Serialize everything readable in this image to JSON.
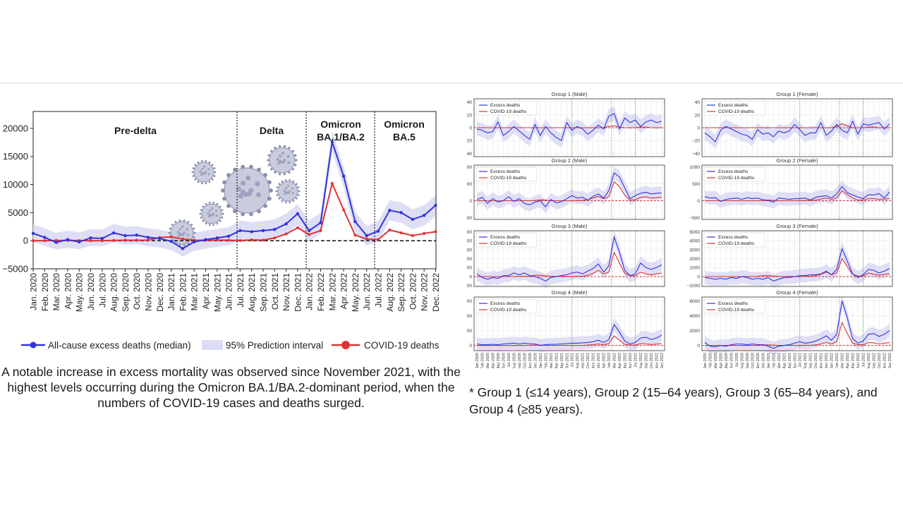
{
  "main_caption": "A notable increase in excess mortality was observed since November 2021, with the highest levels occurring during the Omicron BA.1/BA.2-dominant period, when the numbers of COVID-19 cases and deaths surged.",
  "footnote": "* Group 1 (≤14 years), Group 2 (15–64 years), Group 3 (65–84 years), and Group 4 (≥85 years).",
  "colors": {
    "excess": "#3333dd",
    "covid": "#dd3333",
    "band": "#dcdcf5",
    "virus": "#8a8fae"
  },
  "chart_data": [
    {
      "type": "line",
      "x": [
        "Jan. 2020",
        "Feb. 2020",
        "Mar. 2020",
        "Apr. 2020",
        "May. 2020",
        "Jun. 2020",
        "Jul. 2020",
        "Aug. 2020",
        "Sep. 2020",
        "Oct. 2020",
        "Nov. 2020",
        "Dec. 2020",
        "Jan. 2021",
        "Feb. 2021",
        "Mar. 2021",
        "Apr. 2021",
        "May. 2021",
        "Jun. 2021",
        "Jul. 2021",
        "Aug. 2021",
        "Sep. 2021",
        "Oct. 2021",
        "Nov. 2021",
        "Dec. 2021",
        "Jan. 2022",
        "Feb. 2022",
        "Mar. 2022",
        "Apr. 2022",
        "May. 2022",
        "Jun. 2022",
        "Jul. 2022",
        "Aug. 2022",
        "Sep. 2022",
        "Oct. 2022",
        "Nov. 2022",
        "Dec. 2022"
      ],
      "ylim": [
        -5000,
        23000
      ],
      "yticks": [
        -5000,
        0,
        5000,
        10000,
        15000,
        20000
      ],
      "series": [
        {
          "name": "All-cause excess deaths (median)",
          "values": [
            1300,
            600,
            -300,
            200,
            -200,
            500,
            400,
            1400,
            900,
            1000,
            600,
            400,
            -100,
            -1400,
            -200,
            200,
            500,
            800,
            1800,
            1600,
            1800,
            2000,
            3000,
            4800,
            1800,
            3200,
            17600,
            11500,
            3400,
            900,
            1700,
            5400,
            5000,
            3800,
            4500,
            6300
          ]
        },
        {
          "name": "95% Prediction interval",
          "lower": [
            -300,
            -900,
            -1600,
            -1300,
            -1500,
            -900,
            -1000,
            -300,
            -700,
            -600,
            -1000,
            -1200,
            -1700,
            -2800,
            -1800,
            -1400,
            -1100,
            -800,
            0,
            -100,
            0,
            300,
            1200,
            2800,
            -100,
            1300,
            15800,
            9500,
            1500,
            -900,
            -200,
            3600,
            3200,
            2000,
            2700,
            4400
          ],
          "upper": [
            2900,
            2200,
            1400,
            1800,
            1500,
            2100,
            2000,
            3000,
            2500,
            2600,
            2200,
            2000,
            1500,
            0,
            1400,
            1800,
            2100,
            2400,
            3600,
            3300,
            3500,
            3800,
            4800,
            6500,
            3600,
            5000,
            19500,
            13200,
            5200,
            2600,
            3500,
            7200,
            6800,
            5600,
            6300,
            8100
          ]
        },
        {
          "name": "COVID-19 deaths",
          "values": [
            0,
            10,
            50,
            60,
            30,
            0,
            10,
            50,
            100,
            80,
            100,
            550,
            700,
            300,
            100,
            80,
            120,
            80,
            20,
            150,
            100,
            500,
            1200,
            2300,
            1100,
            1800,
            10200,
            5500,
            1000,
            300,
            200,
            1900,
            1400,
            900,
            1300,
            1600
          ]
        }
      ],
      "periods": [
        {
          "label": "Pre-delta"
        },
        {
          "label": "Delta"
        },
        {
          "label": "Omicron BA.1/BA.2"
        },
        {
          "label": "Omicron BA.5"
        }
      ]
    },
    {
      "type": "line",
      "title": "Group 1 (Male)",
      "ylim": [
        -45,
        45
      ],
      "yticks": [
        -40,
        -20,
        0,
        20,
        40
      ],
      "series": [
        {
          "name": "Excess deaths",
          "values": [
            -2,
            -4,
            -8,
            -6,
            9,
            -12,
            -6,
            2,
            -5,
            -12,
            -18,
            5,
            -12,
            2,
            -8,
            -15,
            -20,
            8,
            -4,
            2,
            -2,
            -10,
            -4,
            4,
            -2,
            18,
            22,
            -2,
            15,
            8,
            12,
            2,
            9,
            12,
            8,
            10
          ]
        },
        {
          "name": "COVID-19 deaths",
          "values": [
            0,
            0,
            0,
            0,
            0,
            0,
            0,
            0,
            0,
            0,
            0,
            0,
            0,
            0,
            0,
            0,
            0,
            0,
            0,
            0,
            0,
            0,
            0,
            0,
            0,
            2,
            3,
            1,
            0,
            0,
            0,
            1,
            1,
            0,
            0,
            0
          ]
        }
      ]
    },
    {
      "type": "line",
      "title": "Group 1 (Female)",
      "ylim": [
        -45,
        45
      ],
      "yticks": [
        -40,
        -20,
        0,
        20,
        40
      ],
      "series": [
        {
          "name": "Excess deaths",
          "values": [
            -8,
            -14,
            -22,
            -4,
            2,
            -2,
            -6,
            -10,
            -12,
            -18,
            -3,
            -10,
            -8,
            -14,
            -5,
            -8,
            -5,
            5,
            -3,
            -12,
            -8,
            -8,
            8,
            -12,
            -5,
            5,
            -4,
            -8,
            10,
            -10,
            6,
            4,
            6,
            8,
            -2,
            6
          ]
        },
        {
          "name": "COVID-19 deaths",
          "values": [
            0,
            0,
            0,
            0,
            0,
            0,
            0,
            0,
            0,
            0,
            0,
            0,
            0,
            0,
            0,
            0,
            0,
            0,
            0,
            0,
            0,
            0,
            0,
            0,
            0,
            2,
            6,
            3,
            0,
            0,
            0,
            1,
            1,
            0,
            0,
            0
          ]
        }
      ]
    },
    {
      "type": "line",
      "title": "Group 2 (Male)",
      "ylim": [
        -550,
        1050
      ],
      "yticks": [
        -500,
        0,
        500,
        1000
      ],
      "series": [
        {
          "name": "Excess deaths",
          "values": [
            30,
            100,
            -80,
            60,
            -40,
            0,
            120,
            -20,
            60,
            -80,
            -120,
            -40,
            0,
            -180,
            40,
            -60,
            -30,
            60,
            150,
            80,
            100,
            20,
            130,
            200,
            80,
            300,
            820,
            700,
            380,
            60,
            150,
            220,
            250,
            200,
            220,
            230
          ]
        },
        {
          "name": "COVID-19 deaths",
          "values": [
            0,
            0,
            0,
            0,
            0,
            0,
            0,
            0,
            0,
            0,
            0,
            10,
            30,
            20,
            0,
            0,
            0,
            0,
            0,
            10,
            10,
            30,
            80,
            130,
            60,
            120,
            560,
            420,
            160,
            20,
            30,
            100,
            120,
            80,
            90,
            100
          ]
        }
      ]
    },
    {
      "type": "line",
      "title": "Group 2 (Female)",
      "ylim": [
        -550,
        1050
      ],
      "yticks": [
        -500,
        0,
        500,
        1000
      ],
      "series": [
        {
          "name": "Excess deaths",
          "values": [
            120,
            80,
            90,
            -20,
            40,
            60,
            80,
            40,
            90,
            60,
            80,
            30,
            10,
            -40,
            80,
            60,
            40,
            60,
            60,
            80,
            20,
            100,
            130,
            150,
            80,
            200,
            420,
            240,
            170,
            110,
            60,
            180,
            170,
            210,
            80,
            260
          ]
        },
        {
          "name": "COVID-19 deaths",
          "values": [
            0,
            0,
            0,
            0,
            0,
            0,
            0,
            0,
            0,
            0,
            0,
            10,
            20,
            10,
            0,
            0,
            0,
            0,
            0,
            10,
            10,
            20,
            50,
            80,
            40,
            80,
            300,
            180,
            80,
            20,
            20,
            60,
            60,
            40,
            50,
            60
          ]
        }
      ]
    },
    {
      "type": "line",
      "title": "Group 3 (Male)",
      "ylim": [
        -1100,
        5100
      ],
      "yticks": [
        -1000,
        0,
        1000,
        2000,
        3000,
        4000,
        5000
      ],
      "series": [
        {
          "name": "Excess deaths",
          "values": [
            300,
            -100,
            -300,
            -100,
            -200,
            100,
            100,
            400,
            200,
            400,
            100,
            0,
            -200,
            -500,
            -100,
            0,
            100,
            200,
            400,
            500,
            300,
            600,
            900,
            1400,
            500,
            1200,
            4400,
            2700,
            700,
            100,
            300,
            1500,
            1000,
            800,
            1000,
            1300
          ]
        },
        {
          "name": "COVID-19 deaths",
          "values": [
            0,
            0,
            0,
            0,
            0,
            0,
            0,
            0,
            20,
            20,
            30,
            150,
            150,
            80,
            20,
            20,
            30,
            20,
            10,
            40,
            40,
            150,
            350,
            700,
            300,
            500,
            2700,
            1500,
            350,
            100,
            80,
            500,
            300,
            200,
            300,
            400
          ]
        }
      ]
    },
    {
      "type": "line",
      "title": "Group 3 (Female)",
      "ylim": [
        -1100,
        5100
      ],
      "yticks": [
        -1000,
        0,
        1000,
        2000,
        3000,
        4000,
        5000
      ],
      "series": [
        {
          "name": "Excess deaths",
          "values": [
            -100,
            -200,
            -300,
            -200,
            -300,
            -100,
            -200,
            0,
            -100,
            -300,
            -200,
            -300,
            -100,
            -500,
            -300,
            -100,
            -100,
            0,
            100,
            100,
            200,
            200,
            300,
            600,
            200,
            800,
            3100,
            1700,
            300,
            -100,
            200,
            800,
            700,
            400,
            600,
            900
          ]
        },
        {
          "name": "COVID-19 deaths",
          "values": [
            0,
            0,
            0,
            0,
            0,
            0,
            0,
            0,
            10,
            10,
            20,
            100,
            100,
            50,
            10,
            10,
            20,
            10,
            10,
            30,
            30,
            100,
            250,
            500,
            200,
            400,
            2000,
            1100,
            250,
            80,
            60,
            400,
            250,
            150,
            250,
            300
          ]
        }
      ]
    },
    {
      "type": "line",
      "title": "Group 4 (Male)",
      "ylim": [
        -700,
        6500
      ],
      "yticks": [
        0,
        2000,
        4000,
        6000
      ],
      "series": [
        {
          "name": "Excess deaths",
          "values": [
            200,
            100,
            100,
            150,
            100,
            200,
            250,
            300,
            200,
            300,
            200,
            200,
            0,
            100,
            150,
            150,
            200,
            250,
            300,
            300,
            350,
            400,
            500,
            700,
            400,
            800,
            2800,
            1800,
            600,
            200,
            400,
            1000,
            1100,
            800,
            1000,
            1400
          ]
        },
        {
          "name": "COVID-19 deaths",
          "values": [
            0,
            0,
            0,
            0,
            0,
            0,
            0,
            0,
            0,
            10,
            10,
            50,
            50,
            20,
            10,
            10,
            10,
            10,
            0,
            10,
            10,
            50,
            100,
            200,
            100,
            250,
            1300,
            700,
            150,
            50,
            50,
            250,
            200,
            120,
            180,
            250
          ]
        }
      ]
    },
    {
      "type": "line",
      "title": "Group 4 (Female)",
      "ylim": [
        -700,
        6500
      ],
      "yticks": [
        0,
        2000,
        4000,
        6000
      ],
      "series": [
        {
          "name": "Excess deaths",
          "values": [
            400,
            -100,
            -200,
            0,
            -100,
            100,
            200,
            200,
            100,
            200,
            100,
            100,
            -100,
            -400,
            -100,
            0,
            100,
            300,
            500,
            300,
            400,
            600,
            900,
            1300,
            700,
            1500,
            6000,
            3700,
            900,
            300,
            600,
            1500,
            1600,
            1200,
            1500,
            2000
          ]
        },
        {
          "name": "COVID-19 deaths",
          "values": [
            0,
            0,
            0,
            0,
            0,
            0,
            0,
            0,
            0,
            10,
            10,
            80,
            80,
            40,
            10,
            10,
            20,
            10,
            0,
            20,
            20,
            80,
            200,
            400,
            200,
            500,
            3100,
            1600,
            300,
            100,
            80,
            400,
            350,
            200,
            300,
            400
          ]
        }
      ]
    }
  ]
}
